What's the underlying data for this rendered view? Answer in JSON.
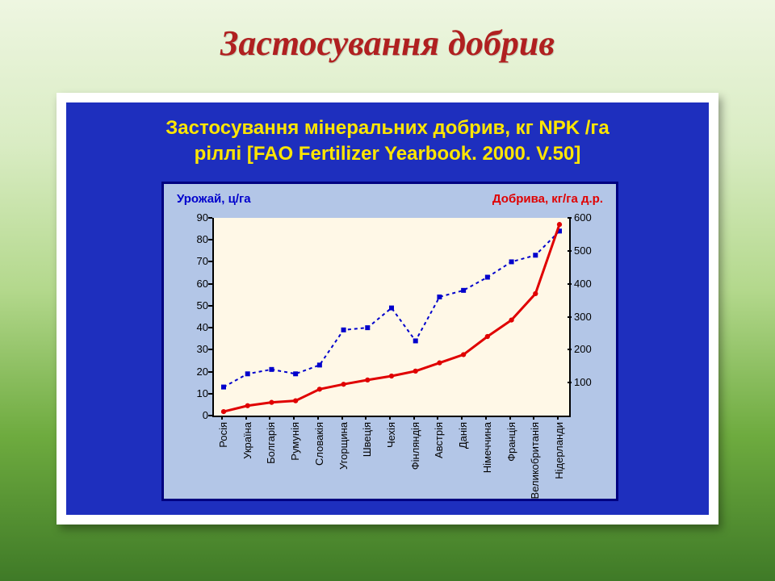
{
  "slide": {
    "title": "Застосування добрив",
    "title_color": "#b02020",
    "title_fontsize": 44,
    "background_gradient": [
      "#eef6e1",
      "#d9ecc3",
      "#b3d88c",
      "#6eab3f",
      "#3f7a27"
    ]
  },
  "panel": {
    "outer_bg": "#ffffff",
    "inner_bg": "#1e2fbe",
    "title_line1": "Застосування мінеральних добрив, кг NPK /га",
    "title_line2": "ріллі [FAO Fertilizer Yearbook. 2000. V.50]",
    "title_color": "#ffe600",
    "title_fontsize": 24
  },
  "chart": {
    "type": "dual-axis-line",
    "frame_bg": "#b3c6e7",
    "frame_border": "#000080",
    "plot_bg": "#fff8e7",
    "left_axis": {
      "label": "Урожай, ц/га",
      "label_color": "#0000cc",
      "min": 0,
      "max": 90,
      "tick_step": 10,
      "ticks": [
        0,
        10,
        20,
        30,
        40,
        50,
        60,
        70,
        80,
        90
      ]
    },
    "right_axis": {
      "label": "Добрива, кг/га д.р.",
      "label_color": "#e00000",
      "min": 0,
      "max": 600,
      "tick_step": 100,
      "ticks": [
        100,
        200,
        300,
        400,
        500,
        600
      ]
    },
    "categories": [
      "Росія",
      "Україна",
      "Болгарія",
      "Румунія",
      "Словакія",
      "Угорщина",
      "Швеція",
      "Чехія",
      "Фінляндія",
      "Австрія",
      "Данія",
      "Німеччина",
      "Франція",
      "Великобританія",
      "Нідерланди"
    ],
    "series": [
      {
        "name": "Урожай",
        "axis": "left",
        "color": "#0000cc",
        "marker": "square",
        "marker_size": 6,
        "line_style": "dashed",
        "line_width": 2,
        "values": [
          13,
          19,
          21,
          19,
          23,
          39,
          40,
          49,
          34,
          54,
          57,
          63,
          70,
          73,
          84
        ]
      },
      {
        "name": "Добрива",
        "axis": "right",
        "color": "#e00000",
        "marker": "circle",
        "marker_size": 5,
        "line_style": "solid",
        "line_width": 3,
        "values": [
          12,
          30,
          40,
          45,
          80,
          95,
          108,
          120,
          135,
          160,
          185,
          240,
          290,
          370,
          580
        ]
      }
    ],
    "tick_fontsize": 13,
    "category_fontsize": 13
  }
}
